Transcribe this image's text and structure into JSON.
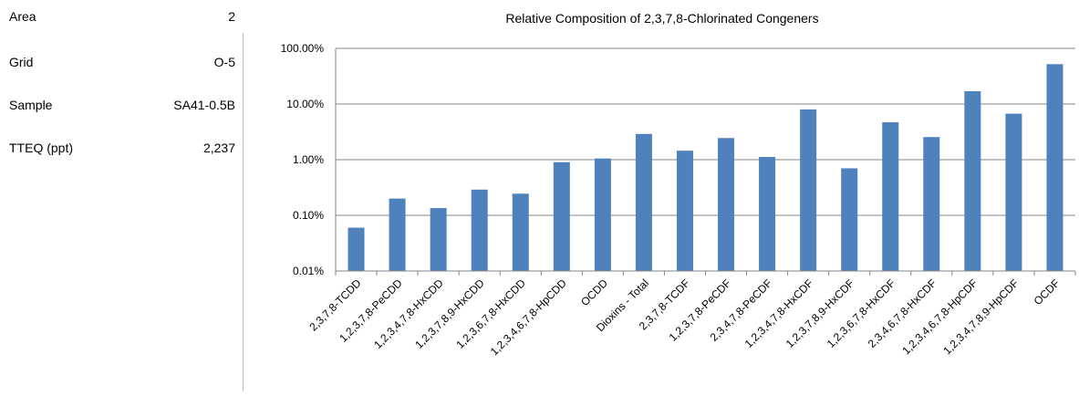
{
  "info": [
    {
      "label": "Area",
      "value": "2"
    },
    {
      "label": "Grid",
      "value": "O-5"
    },
    {
      "label": "Sample",
      "value": "SA41-0.5B"
    },
    {
      "label": "TTEQ (ppt)",
      "value": "2,237"
    }
  ],
  "chart_data": {
    "type": "bar",
    "title": "Relative Composition of 2,3,7,8-Chlorinated Congeners",
    "xlabel": "",
    "ylabel": "",
    "yscale": "log",
    "ylim": [
      0.01,
      100
    ],
    "yticks": [
      "100.00%",
      "10.00%",
      "1.00%",
      "0.10%",
      "0.01%"
    ],
    "grid": true,
    "legend": "none",
    "bar_color": "#4f81bd",
    "categories": [
      "2,3,7,8-TCDD",
      "1,2,3,7,8-PeCDD",
      "1,2,3,4,7,8-HxCDD",
      "1,2,3,7,8,9-HxCDD",
      "1,2,3,6,7,8-HxCDD",
      "1,2,3,4,6,7,8-HpCDD",
      "OCDD",
      "Dioxins - Total",
      "2,3,7,8-TCDF",
      "1,2,3,7,8-PeCDF",
      "2,3,4,7,8-PeCDF",
      "1,2,3,4,7,8-HxCDF",
      "1,2,3,7,8,9-HxCDF",
      "1,2,3,6,7,8-HxCDF",
      "2,3,4,6,7,8-HxCDF",
      "1,2,3,4,6,7,8-HpCDF",
      "1,2,3,4,7,8,9-HpCDF",
      "OCDF"
    ],
    "values": [
      0.06,
      0.2,
      0.135,
      0.29,
      0.245,
      0.9,
      1.05,
      2.9,
      1.45,
      2.45,
      1.12,
      8.0,
      0.7,
      4.7,
      2.55,
      17.0,
      6.7,
      52.0
    ]
  }
}
